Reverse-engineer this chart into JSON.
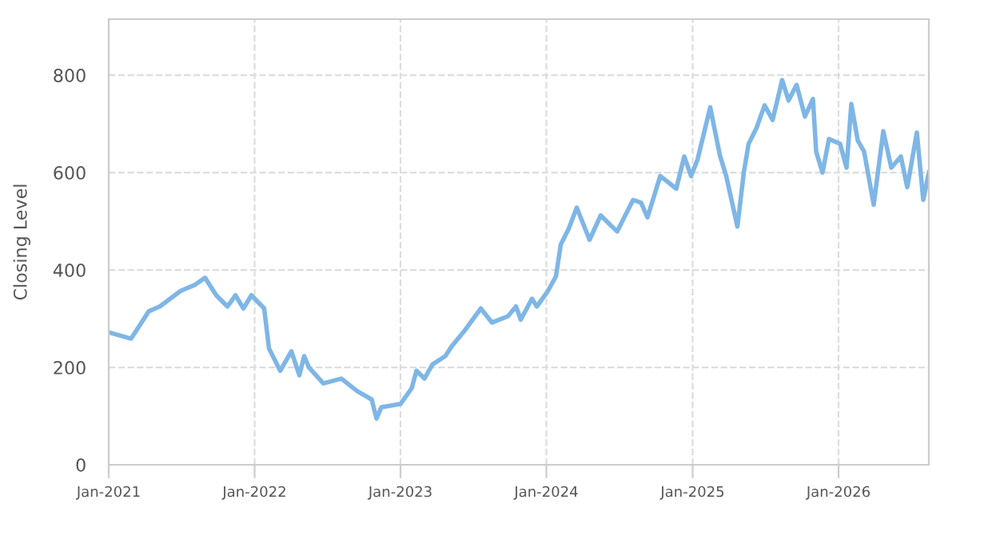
{
  "chart_data": {
    "type": "line",
    "ylabel": "Closing Level",
    "xlim": [
      "2021-01-01",
      "2026-08-15"
    ],
    "ylim": [
      0,
      915
    ],
    "yticks": [
      0,
      200,
      400,
      600,
      800
    ],
    "xticks": [
      {
        "value": "2021-01-01",
        "label": "Jan-2021"
      },
      {
        "value": "2022-01-01",
        "label": "Jan-2022"
      },
      {
        "value": "2023-01-01",
        "label": "Jan-2023"
      },
      {
        "value": "2024-01-01",
        "label": "Jan-2024"
      },
      {
        "value": "2025-01-01",
        "label": "Jan-2025"
      },
      {
        "value": "2026-01-01",
        "label": "Jan-2026"
      }
    ],
    "grid": true,
    "legend": false,
    "marker": "none",
    "line_style": "solid",
    "x": [
      "2021-01-01",
      "2021-02-26",
      "2021-04-11",
      "2021-05-09",
      "2021-06-30",
      "2021-08-06",
      "2021-08-30",
      "2021-09-27",
      "2021-10-25",
      "2021-11-14",
      "2021-12-04",
      "2021-12-24",
      "2022-01-25",
      "2022-02-06",
      "2022-03-06",
      "2022-04-03",
      "2022-04-23",
      "2022-05-05",
      "2022-05-17",
      "2022-06-22",
      "2022-08-06",
      "2022-09-15",
      "2022-10-21",
      "2022-11-02",
      "2022-11-14",
      "2023-01-01",
      "2023-01-29",
      "2023-02-10",
      "2023-03-02",
      "2023-03-22",
      "2023-04-23",
      "2023-05-09",
      "2023-06-10",
      "2023-07-21",
      "2023-08-18",
      "2023-09-27",
      "2023-10-17",
      "2023-10-29",
      "2023-11-26",
      "2023-12-08",
      "2024-01-05",
      "2024-01-25",
      "2024-02-06",
      "2024-02-26",
      "2024-03-17",
      "2024-04-18",
      "2024-05-16",
      "2024-06-26",
      "2024-08-05",
      "2024-08-25",
      "2024-09-10",
      "2024-10-12",
      "2024-11-21",
      "2024-12-11",
      "2024-12-28",
      "2025-01-13",
      "2025-02-14",
      "2025-03-10",
      "2025-03-26",
      "2025-04-23",
      "2025-05-09",
      "2025-05-21",
      "2025-06-10",
      "2025-06-30",
      "2025-07-20",
      "2025-08-13",
      "2025-08-29",
      "2025-09-18",
      "2025-10-09",
      "2025-10-29",
      "2025-11-06",
      "2025-11-22",
      "2025-12-08",
      "2026-01-05",
      "2026-01-21",
      "2026-02-02",
      "2026-02-18",
      "2026-03-06",
      "2026-03-30",
      "2026-04-23",
      "2026-05-13",
      "2026-06-06",
      "2026-06-22",
      "2026-07-16",
      "2026-08-01",
      "2026-08-15"
    ],
    "series": [
      {
        "color": "#7eb6e6",
        "values": [
          272,
          259,
          315,
          325,
          357,
          370,
          384,
          348,
          325,
          348,
          321,
          348,
          321,
          239,
          193,
          233,
          184,
          223,
          200,
          167,
          177,
          151,
          134,
          95,
          118,
          125,
          157,
          193,
          177,
          206,
          223,
          243,
          275,
          321,
          292,
          305,
          325,
          298,
          341,
          325,
          357,
          387,
          452,
          485,
          528,
          462,
          512,
          479,
          544,
          538,
          508,
          593,
          567,
          633,
          593,
          626,
          734,
          636,
          593,
          489,
          600,
          659,
          692,
          738,
          708,
          790,
          748,
          780,
          715,
          751,
          643,
          600,
          669,
          659,
          610,
          741,
          666,
          643,
          534,
          685,
          610,
          633,
          570,
          682,
          544,
          600
        ]
      }
    ]
  }
}
